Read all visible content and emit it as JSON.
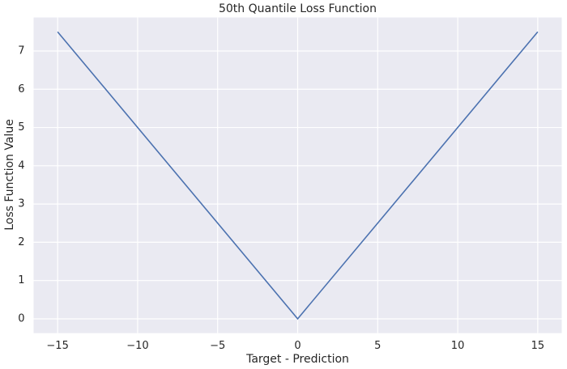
{
  "chart_data": {
    "type": "line",
    "title": "50th Quantile Loss Function",
    "xlabel": "Target - Prediction",
    "ylabel": "Loss Function Value",
    "x": [
      -15,
      0,
      15
    ],
    "series": [
      {
        "color": "#4c72b0",
        "values": [
          7.5,
          0,
          7.5
        ]
      }
    ],
    "xlim": [
      -16.5,
      16.5
    ],
    "xticks": [
      {
        "value": -15,
        "label": "−15"
      },
      {
        "value": -10,
        "label": "−10"
      },
      {
        "value": -5,
        "label": "−5"
      },
      0,
      5,
      10,
      15
    ],
    "ylim": [
      -0.375,
      7.875
    ],
    "yticks": [
      0,
      1,
      2,
      3,
      4,
      5,
      6,
      7
    ],
    "grid": true
  }
}
